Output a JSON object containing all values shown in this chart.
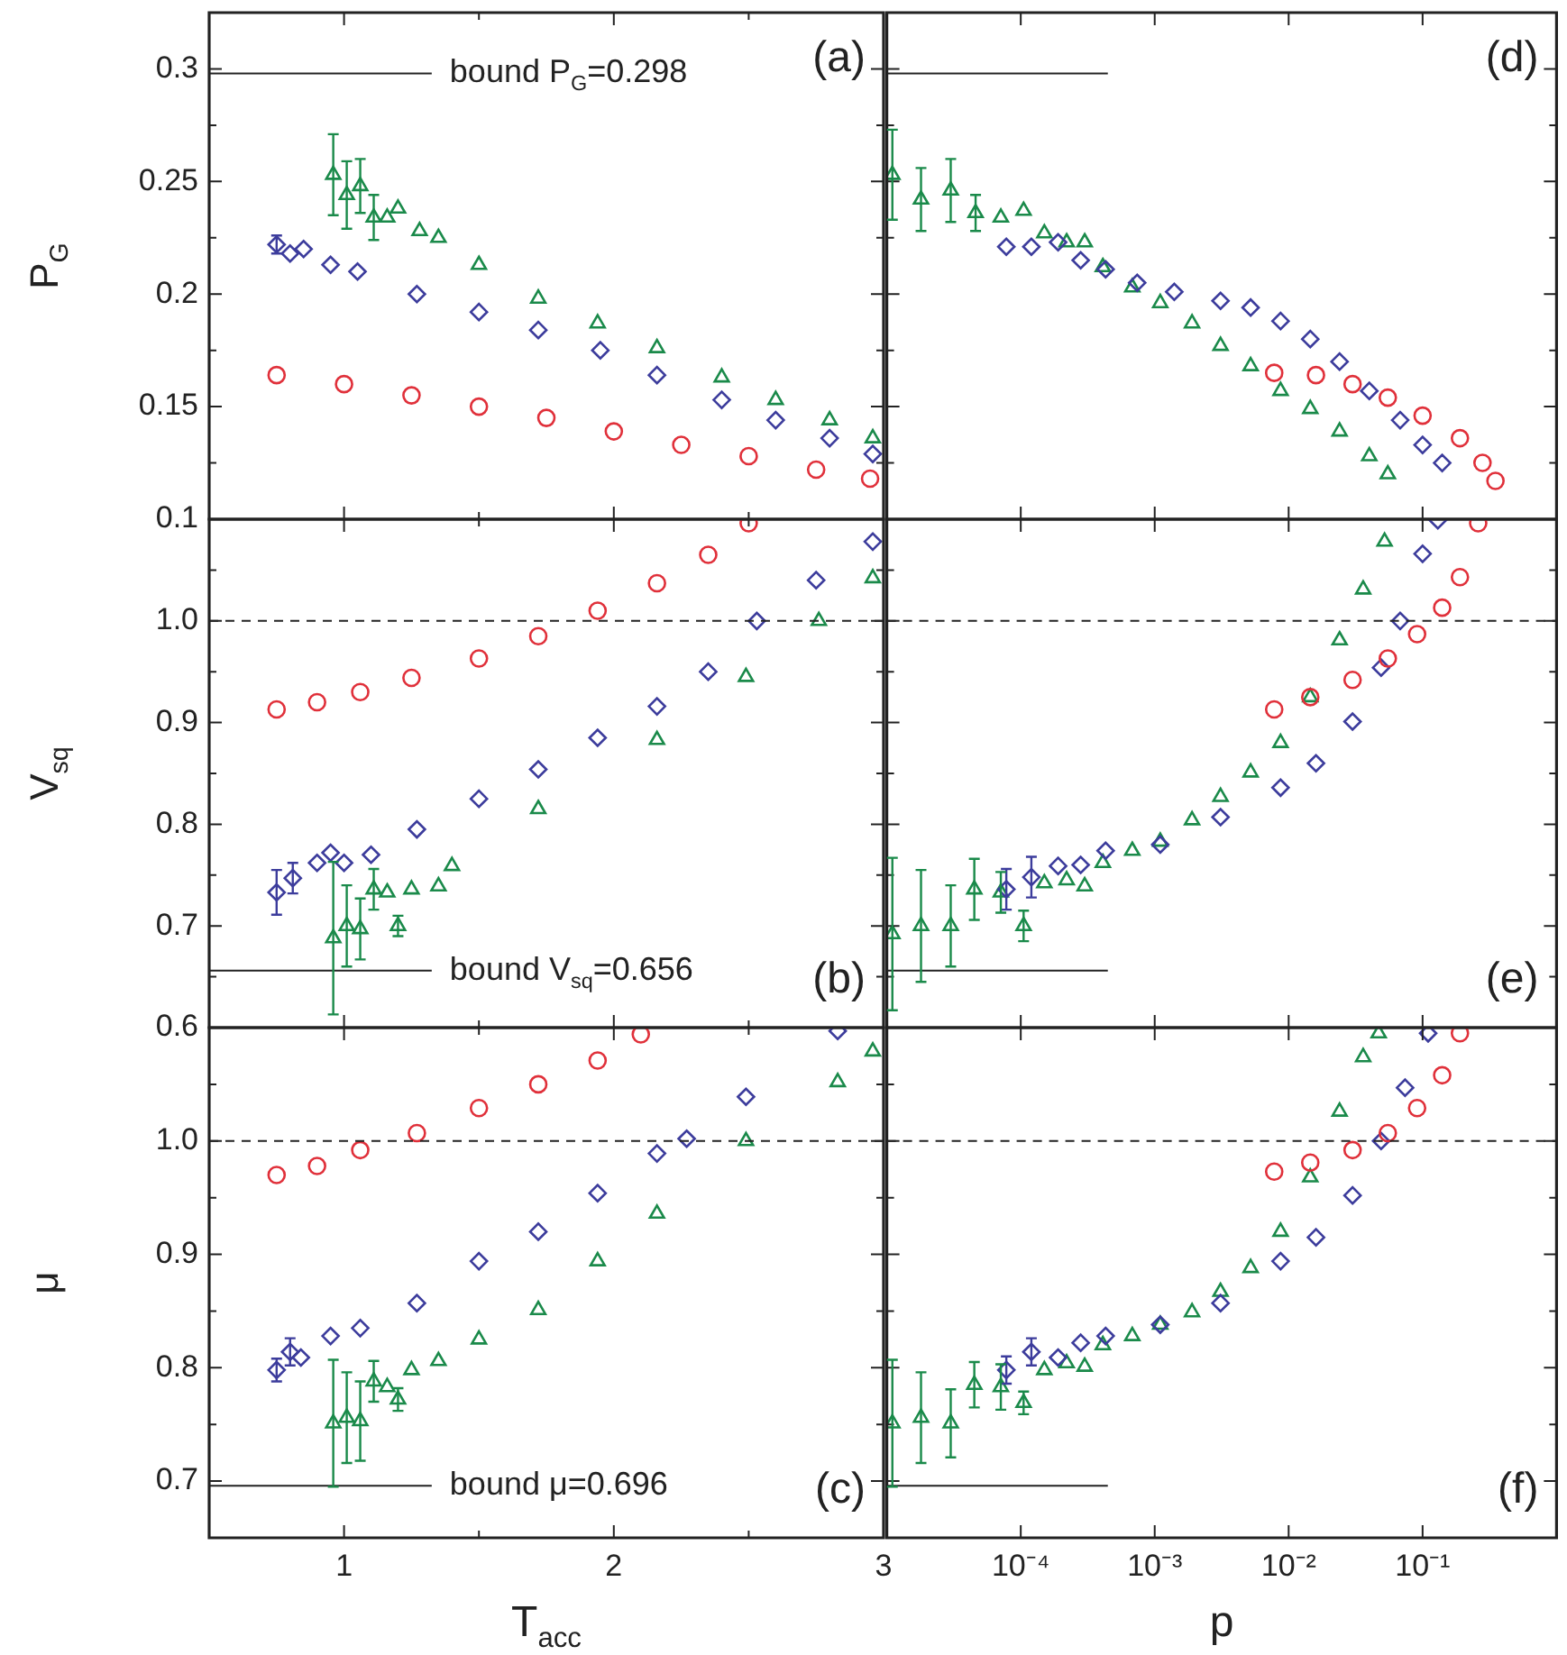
{
  "chart_data": [
    {
      "type": "scatter",
      "ylabel": "P$_{G}$",
      "xlim": [
        0.5,
        3
      ],
      "ylim": [
        0.1,
        0.325
      ],
      "tick_labels": "y",
      "xticks": [
        1,
        {
          "value": 1.5,
          "label": null
        },
        2,
        {
          "value": 2.5,
          "label": null
        },
        3
      ],
      "yticks": [
        0.1,
        {
          "value": 0.125,
          "label": null
        },
        0.15,
        {
          "value": 0.175,
          "label": null
        },
        0.2,
        {
          "value": 0.225,
          "label": null
        },
        0.25,
        {
          "value": 0.275,
          "label": null
        },
        0.3
      ],
      "ref_lines": [
        {
          "axis": "y",
          "value": 0.298,
          "label": "bound P$_{G}$=0.298",
          "color": "#222222"
        }
      ],
      "annotations": [
        "(a)"
      ],
      "series": [
        {
          "color": "#e0303a",
          "marker": "circle",
          "x": [
            0.75,
            1.0,
            1.25,
            1.5,
            1.75,
            2.0,
            2.25,
            2.5,
            2.75,
            2.95
          ],
          "values": [
            0.164,
            0.16,
            0.155,
            0.15,
            0.145,
            0.139,
            0.133,
            0.128,
            0.122,
            0.118
          ]
        },
        {
          "color": "#3c3c9c",
          "marker": "diamond",
          "x": [
            0.75,
            0.8,
            0.85,
            0.95,
            1.05,
            1.27,
            1.5,
            1.72,
            1.95,
            2.16,
            2.4,
            2.6,
            2.8,
            2.96
          ],
          "values": [
            0.222,
            0.218,
            0.22,
            0.213,
            0.21,
            0.2,
            0.192,
            0.184,
            0.175,
            0.164,
            0.153,
            0.144,
            0.136,
            0.129
          ],
          "errors": [
            0.004,
            null,
            null,
            null,
            null,
            null,
            null,
            null,
            null,
            null,
            null,
            null,
            null,
            null
          ]
        },
        {
          "color": "#1a8a4a",
          "marker": "triangle",
          "x": [
            0.96,
            1.01,
            1.06,
            1.11,
            1.16,
            1.2,
            1.28,
            1.35,
            1.5,
            1.72,
            1.94,
            2.16,
            2.4,
            2.6,
            2.8,
            2.96
          ],
          "values": [
            0.253,
            0.244,
            0.248,
            0.234,
            0.234,
            0.238,
            0.228,
            0.225,
            0.213,
            0.198,
            0.187,
            0.176,
            0.163,
            0.153,
            0.144,
            0.136
          ],
          "errors": [
            0.018,
            0.015,
            0.012,
            0.01,
            null,
            null,
            null,
            null,
            null,
            null,
            null,
            null,
            null,
            null,
            null,
            null
          ]
        }
      ]
    },
    {
      "type": "scatter",
      "xlim": [
        1e-05,
        1
      ],
      "ylim": [
        0.1,
        0.325
      ],
      "log": "x",
      "tick_labels": false,
      "xticks": [
        1e-05,
        0.0001,
        0.001,
        0.01,
        0.1,
        1
      ],
      "yticks": [
        0.1,
        {
          "value": 0.125,
          "label": null
        },
        0.15,
        {
          "value": 0.175,
          "label": null
        },
        0.2,
        {
          "value": 0.225,
          "label": null
        },
        0.25,
        {
          "value": 0.275,
          "label": null
        },
        0.3
      ],
      "ref_lines": [
        {
          "axis": "y",
          "value": 0.298,
          "color": "#222222"
        }
      ],
      "annotations": [
        "(d)"
      ],
      "series": [
        {
          "color": "#e0303a",
          "marker": "circle",
          "x": [
            0.0078,
            0.016,
            0.03,
            0.055,
            0.1,
            0.19,
            0.28,
            0.35
          ],
          "values": [
            0.165,
            0.164,
            0.16,
            0.154,
            0.146,
            0.136,
            0.125,
            0.117
          ]
        },
        {
          "color": "#3c3c9c",
          "marker": "diamond",
          "x": [
            7.8e-05,
            0.00012,
            0.00019,
            0.00028,
            0.00043,
            0.00074,
            0.0014,
            0.0031,
            0.0052,
            0.0087,
            0.0145,
            0.024,
            0.04,
            0.068,
            0.1,
            0.14
          ],
          "values": [
            0.221,
            0.221,
            0.223,
            0.215,
            0.211,
            0.205,
            0.201,
            0.197,
            0.194,
            0.188,
            0.18,
            0.17,
            0.157,
            0.144,
            0.133,
            0.125
          ]
        },
        {
          "color": "#1a8a4a",
          "marker": "triangle",
          "x": [
            1.1e-05,
            1.8e-05,
            3e-05,
            4.6e-05,
            7.1e-05,
            0.000105,
            0.00015,
            0.00022,
            0.0003,
            0.00041,
            0.00068,
            0.0011,
            0.0019,
            0.0031,
            0.0052,
            0.0087,
            0.0145,
            0.024,
            0.04,
            0.055
          ],
          "values": [
            0.253,
            0.242,
            0.246,
            0.236,
            0.234,
            0.237,
            0.227,
            0.223,
            0.223,
            0.212,
            0.203,
            0.196,
            0.187,
            0.177,
            0.168,
            0.157,
            0.149,
            0.139,
            0.128,
            0.12
          ],
          "errors": [
            0.02,
            0.014,
            0.014,
            0.008,
            null,
            null,
            null,
            null,
            null,
            null,
            null,
            null,
            null,
            null,
            null,
            null,
            null,
            null,
            null,
            null
          ]
        }
      ]
    },
    {
      "type": "scatter",
      "ylabel": "V$_{sq}$",
      "xlim": [
        0.5,
        3
      ],
      "ylim": [
        0.6,
        1.1
      ],
      "tick_labels": "y",
      "xticks": [
        1,
        {
          "value": 1.5,
          "label": null
        },
        2,
        {
          "value": 2.5,
          "label": null
        },
        3
      ],
      "yticks": [
        0.6,
        {
          "value": 0.65,
          "label": null
        },
        0.7,
        {
          "value": 0.75,
          "label": null
        },
        0.8,
        {
          "value": 0.85,
          "label": null
        },
        0.9,
        {
          "value": 0.95,
          "label": null
        },
        {
          "value": 1,
          "label": "1.0"
        },
        {
          "value": 1.05,
          "label": null
        }
      ],
      "ref_lines": [
        {
          "axis": "y",
          "value": 1,
          "line_style": "dashed",
          "color": "#222222"
        },
        {
          "axis": "y",
          "value": 0.656,
          "label": "bound V$_{sq}$=0.656",
          "color": "#222222"
        }
      ],
      "annotations": [
        "(b)"
      ],
      "series": [
        {
          "color": "#e0303a",
          "marker": "circle",
          "x": [
            0.75,
            0.9,
            1.06,
            1.25,
            1.5,
            1.72,
            1.94,
            2.16,
            2.35,
            2.5
          ],
          "values": [
            0.913,
            0.92,
            0.93,
            0.944,
            0.963,
            0.985,
            1.01,
            1.037,
            1.065,
            1.096
          ]
        },
        {
          "color": "#3c3c9c",
          "marker": "diamond",
          "x": [
            0.75,
            0.81,
            0.9,
            0.95,
            1.0,
            1.1,
            1.27,
            1.5,
            1.72,
            1.94,
            2.16,
            2.35,
            2.53,
            2.75,
            2.96
          ],
          "values": [
            0.733,
            0.747,
            0.762,
            0.772,
            0.762,
            0.77,
            0.795,
            0.825,
            0.854,
            0.885,
            0.916,
            0.95,
            1.0,
            1.04,
            1.078
          ],
          "errors": [
            0.022,
            0.015,
            null,
            null,
            null,
            null,
            null,
            null,
            null,
            null,
            null,
            null,
            null,
            null,
            null
          ]
        },
        {
          "color": "#1a8a4a",
          "marker": "triangle",
          "x": [
            0.96,
            1.01,
            1.06,
            1.11,
            1.16,
            1.2,
            1.25,
            1.35,
            1.4,
            1.72,
            2.16,
            2.49,
            2.76,
            2.96
          ],
          "values": [
            0.688,
            0.7,
            0.697,
            0.736,
            0.733,
            0.7,
            0.736,
            0.739,
            0.759,
            0.815,
            0.883,
            0.945,
            1.0,
            1.042
          ],
          "errors": [
            0.075,
            0.04,
            0.03,
            0.02,
            null,
            0.01,
            null,
            null,
            null,
            null,
            null,
            null,
            null,
            null
          ]
        }
      ]
    },
    {
      "type": "scatter",
      "xlim": [
        1e-05,
        1
      ],
      "ylim": [
        0.6,
        1.1
      ],
      "log": "x",
      "tick_labels": false,
      "xticks": [
        1e-05,
        0.0001,
        0.001,
        0.01,
        0.1,
        1
      ],
      "yticks": [
        0.6,
        {
          "value": 0.65,
          "label": null
        },
        0.7,
        {
          "value": 0.75,
          "label": null
        },
        0.8,
        {
          "value": 0.85,
          "label": null
        },
        0.9,
        {
          "value": 0.95,
          "label": null
        },
        1,
        {
          "value": 1.05,
          "label": null
        }
      ],
      "ref_lines": [
        {
          "axis": "y",
          "value": 1,
          "line_style": "dashed",
          "color": "#222222"
        },
        {
          "axis": "y",
          "value": 0.656,
          "color": "#222222"
        }
      ],
      "annotations": [
        "(e)"
      ],
      "series": [
        {
          "color": "#e0303a",
          "marker": "circle",
          "x": [
            0.0078,
            0.0145,
            0.03,
            0.055,
            0.091,
            0.14,
            0.19,
            0.26
          ],
          "values": [
            0.913,
            0.925,
            0.942,
            0.963,
            0.987,
            1.013,
            1.043,
            1.096
          ]
        },
        {
          "color": "#3c3c9c",
          "marker": "diamond",
          "x": [
            7.8e-05,
            0.00012,
            0.00019,
            0.00028,
            0.00043,
            0.0011,
            0.0031,
            0.0087,
            0.016,
            0.03,
            0.049,
            0.068,
            0.1,
            0.13
          ],
          "values": [
            0.736,
            0.748,
            0.759,
            0.76,
            0.774,
            0.78,
            0.807,
            0.836,
            0.86,
            0.901,
            0.954,
            1.0,
            1.066,
            1.099
          ],
          "errors": [
            0.02,
            0.02,
            null,
            null,
            null,
            null,
            null,
            null,
            null,
            null,
            null,
            null,
            null,
            null
          ]
        },
        {
          "color": "#1a8a4a",
          "marker": "triangle",
          "x": [
            1.1e-05,
            1.8e-05,
            3e-05,
            4.5e-05,
            7.1e-05,
            0.000105,
            0.00015,
            0.00022,
            0.0003,
            0.00041,
            0.00068,
            0.0011,
            0.0019,
            0.0031,
            0.0052,
            0.0087,
            0.0145,
            0.024,
            0.036,
            0.052
          ],
          "values": [
            0.692,
            0.7,
            0.7,
            0.736,
            0.733,
            0.7,
            0.742,
            0.745,
            0.739,
            0.762,
            0.774,
            0.783,
            0.804,
            0.827,
            0.851,
            0.88,
            0.925,
            0.981,
            1.031,
            1.078
          ],
          "errors": [
            0.075,
            0.055,
            0.04,
            0.03,
            0.02,
            0.015,
            null,
            null,
            null,
            null,
            null,
            null,
            null,
            null,
            null,
            null,
            null,
            null,
            null,
            null
          ]
        }
      ]
    },
    {
      "type": "scatter",
      "ylabel": "μ",
      "xlabel": "T$_{acc}$",
      "xlim": [
        0.5,
        3
      ],
      "ylim": [
        0.65,
        1.1
      ],
      "xticks": [
        1,
        {
          "value": 1.5,
          "label": null
        },
        2,
        {
          "value": 2.5,
          "label": null
        },
        3
      ],
      "yticks": [
        0.7,
        {
          "value": 0.75,
          "label": null
        },
        0.8,
        {
          "value": 0.85,
          "label": null
        },
        0.9,
        {
          "value": 0.95,
          "label": null
        },
        {
          "value": 1,
          "label": "1.0"
        },
        {
          "value": 1.05,
          "label": null
        }
      ],
      "ref_lines": [
        {
          "axis": "y",
          "value": 1,
          "line_style": "dashed",
          "color": "#222222"
        },
        {
          "axis": "y",
          "value": 0.696,
          "label": "bound μ=0.696",
          "color": "#222222"
        }
      ],
      "annotations": [
        "(c)"
      ],
      "series": [
        {
          "color": "#e0303a",
          "marker": "circle",
          "x": [
            0.75,
            0.9,
            1.06,
            1.27,
            1.5,
            1.72,
            1.94,
            2.1
          ],
          "values": [
            0.97,
            0.978,
            0.992,
            1.007,
            1.029,
            1.05,
            1.071,
            1.094
          ]
        },
        {
          "color": "#3c3c9c",
          "marker": "diamond",
          "x": [
            0.75,
            0.8,
            0.84,
            0.95,
            1.06,
            1.27,
            1.5,
            1.72,
            1.94,
            2.16,
            2.27,
            2.49,
            2.83
          ],
          "values": [
            0.798,
            0.814,
            0.809,
            0.828,
            0.835,
            0.857,
            0.894,
            0.92,
            0.954,
            0.989,
            1.002,
            1.039,
            1.097
          ],
          "errors": [
            0.01,
            0.012,
            null,
            null,
            null,
            null,
            null,
            null,
            null,
            null,
            null,
            null,
            null
          ]
        },
        {
          "color": "#1a8a4a",
          "marker": "triangle",
          "x": [
            0.96,
            1.01,
            1.06,
            1.11,
            1.16,
            1.2,
            1.25,
            1.35,
            1.5,
            1.72,
            1.94,
            2.16,
            2.49,
            2.83,
            2.96
          ],
          "values": [
            0.751,
            0.756,
            0.753,
            0.788,
            0.783,
            0.772,
            0.798,
            0.806,
            0.825,
            0.851,
            0.894,
            0.936,
            1.0,
            1.052,
            1.079
          ],
          "errors": [
            0.056,
            0.04,
            0.035,
            0.018,
            null,
            0.01,
            null,
            null,
            null,
            null,
            null,
            null,
            null,
            null,
            null
          ]
        }
      ]
    },
    {
      "type": "scatter",
      "xlabel": "p",
      "xlim": [
        1e-05,
        1
      ],
      "ylim": [
        0.65,
        1.1
      ],
      "log": "x",
      "tick_labels": "x",
      "xticks": [
        {
          "value": 1e-05,
          "label": null
        },
        {
          "value": 0.0001,
          "label": "10⁻⁴"
        },
        {
          "value": 0.001,
          "label": "10⁻³"
        },
        {
          "value": 0.01,
          "label": "10⁻²"
        },
        {
          "value": 0.1,
          "label": "10⁻¹"
        },
        {
          "value": 1,
          "label": null
        }
      ],
      "yticks": [
        0.7,
        {
          "value": 0.75,
          "label": null
        },
        0.8,
        {
          "value": 0.85,
          "label": null
        },
        0.9,
        {
          "value": 0.95,
          "label": null
        },
        1,
        {
          "value": 1.05,
          "label": null
        }
      ],
      "ref_lines": [
        {
          "axis": "y",
          "value": 1,
          "line_style": "dashed",
          "color": "#222222"
        },
        {
          "axis": "y",
          "value": 0.696,
          "color": "#222222"
        }
      ],
      "annotations": [
        "(f)"
      ],
      "series": [
        {
          "color": "#e0303a",
          "marker": "circle",
          "x": [
            0.0078,
            0.0145,
            0.03,
            0.055,
            0.091,
            0.14,
            0.19
          ],
          "values": [
            0.973,
            0.981,
            0.992,
            1.007,
            1.029,
            1.058,
            1.095
          ]
        },
        {
          "color": "#3c3c9c",
          "marker": "diamond",
          "x": [
            7.8e-05,
            0.00012,
            0.00019,
            0.00028,
            0.00043,
            0.0011,
            0.0031,
            0.0087,
            0.016,
            0.03,
            0.049,
            0.074,
            0.11
          ],
          "values": [
            0.798,
            0.814,
            0.809,
            0.822,
            0.828,
            0.838,
            0.857,
            0.894,
            0.915,
            0.952,
            1.0,
            1.047,
            1.095
          ],
          "errors": [
            0.012,
            0.012,
            null,
            null,
            null,
            null,
            null,
            null,
            null,
            null,
            null,
            null,
            null
          ]
        },
        {
          "color": "#1a8a4a",
          "marker": "triangle",
          "x": [
            1.1e-05,
            1.8e-05,
            3e-05,
            4.5e-05,
            7.1e-05,
            0.000105,
            0.00015,
            0.00022,
            0.0003,
            0.00041,
            0.00068,
            0.0011,
            0.0019,
            0.0031,
            0.0052,
            0.0087,
            0.0145,
            0.024,
            0.036,
            0.047
          ],
          "values": [
            0.751,
            0.756,
            0.751,
            0.785,
            0.783,
            0.769,
            0.798,
            0.804,
            0.801,
            0.82,
            0.828,
            0.838,
            0.849,
            0.867,
            0.888,
            0.92,
            0.968,
            1.026,
            1.074,
            1.095
          ],
          "errors": [
            0.056,
            0.04,
            0.03,
            0.02,
            0.02,
            0.01,
            null,
            null,
            null,
            null,
            null,
            null,
            null,
            null,
            null,
            null,
            null,
            null,
            null,
            null
          ]
        }
      ]
    }
  ]
}
